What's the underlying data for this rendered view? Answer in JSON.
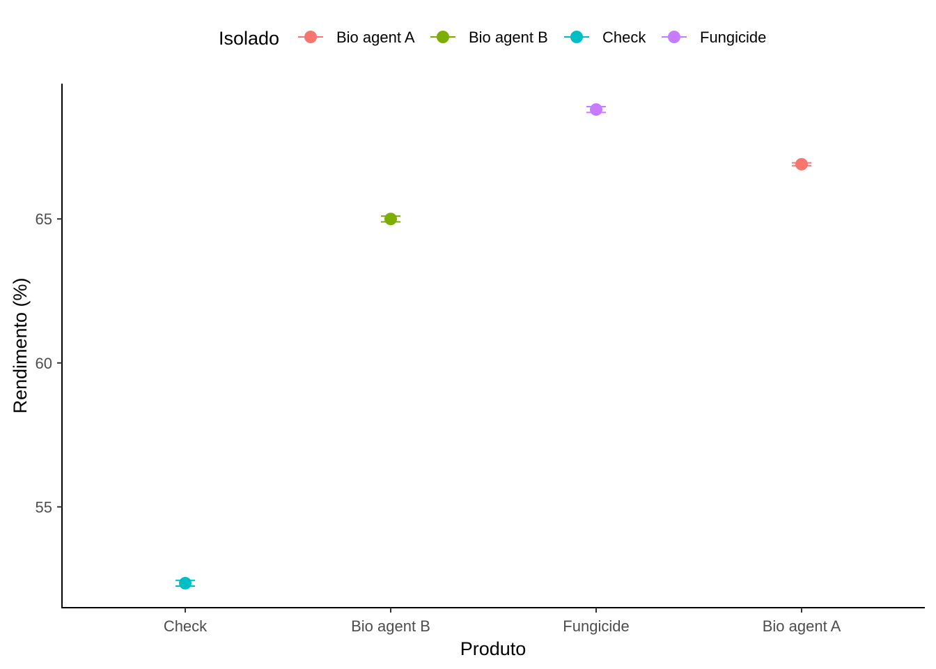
{
  "chart_data": {
    "type": "scatter",
    "title": "",
    "xlabel": "Produto",
    "ylabel": "Rendimento (%)",
    "categories": [
      "Check",
      "Bio agent B",
      "Fungicide",
      "Bio agent A"
    ],
    "ylim": [
      51.5,
      69.7
    ],
    "yticks": [
      55,
      60,
      65
    ],
    "grid": false,
    "legend": {
      "title": "Isolado",
      "position": "top",
      "entries": [
        "Bio agent A",
        "Bio agent B",
        "Check",
        "Fungicide"
      ]
    },
    "series": [
      {
        "name": "Bio agent A",
        "category": "Bio agent A",
        "y": 66.9,
        "ymin": 66.85,
        "ymax": 66.95,
        "color": "#F8766D"
      },
      {
        "name": "Bio agent B",
        "category": "Bio agent B",
        "y": 65.0,
        "ymin": 64.9,
        "ymax": 65.1,
        "color": "#7CAE00"
      },
      {
        "name": "Check",
        "category": "Check",
        "y": 52.35,
        "ymin": 52.25,
        "ymax": 52.45,
        "color": "#00BFC4"
      },
      {
        "name": "Fungicide",
        "category": "Fungicide",
        "y": 68.8,
        "ymin": 68.7,
        "ymax": 68.9,
        "color": "#C77CFF"
      }
    ]
  }
}
